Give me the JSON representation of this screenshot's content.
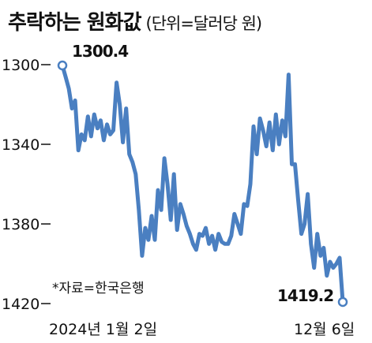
{
  "chart_data": {
    "type": "line",
    "title": "추락하는 원화값",
    "subtitle": "(단위=달러당 원)",
    "y_ticks": [
      1300,
      1340,
      1380,
      1420
    ],
    "ylim": [
      1420,
      1300
    ],
    "y_inverted": true,
    "x_labels": [
      "2024년 1월 2일",
      "12월 6일"
    ],
    "source": "*자료=한국은행",
    "colors": {
      "line": "#4a7fc1",
      "marker_fill": "#ffffff"
    },
    "annotations": [
      {
        "label": "1300.4",
        "point": "first"
      },
      {
        "label": "1419.2",
        "point": "last"
      }
    ],
    "series": [
      {
        "values": [
          1300.4,
          1306,
          1312,
          1322,
          1318,
          1343,
          1335,
          1338,
          1326,
          1336,
          1325,
          1332,
          1328,
          1338,
          1330,
          1335,
          1333,
          1309,
          1320,
          1339,
          1322,
          1345,
          1349,
          1355,
          1373,
          1396,
          1382,
          1388,
          1376,
          1388,
          1363,
          1373,
          1347,
          1360,
          1378,
          1355,
          1383,
          1370,
          1375,
          1381,
          1385,
          1390,
          1393,
          1385,
          1386,
          1382,
          1390,
          1386,
          1393,
          1385,
          1389,
          1390,
          1390,
          1386,
          1375,
          1380,
          1385,
          1370,
          1371,
          1360,
          1331,
          1345,
          1327,
          1333,
          1341,
          1329,
          1343,
          1325,
          1340,
          1328,
          1336,
          1305,
          1350,
          1350,
          1368,
          1385,
          1380,
          1365,
          1390,
          1402,
          1385,
          1396,
          1392,
          1406,
          1399,
          1402,
          1400,
          1397,
          1419.2
        ]
      }
    ]
  }
}
